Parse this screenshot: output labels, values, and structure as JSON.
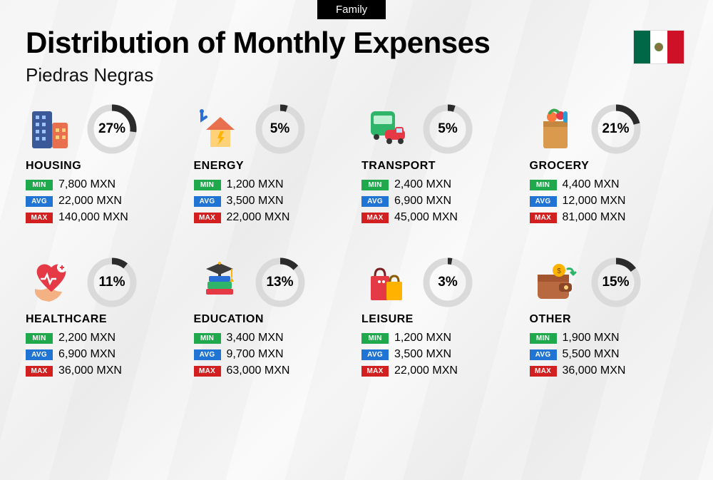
{
  "tab": "Family",
  "title": "Distribution of Monthly Expenses",
  "subtitle": "Piedras Negras",
  "currency": "MXN",
  "labels": {
    "min": "MIN",
    "avg": "AVG",
    "max": "MAX"
  },
  "badge_colors": {
    "min": "#1fa84c",
    "avg": "#1f74d4",
    "max": "#d21f1f"
  },
  "donut": {
    "ring_color": "#2b2b2b",
    "track_color": "#dadada",
    "stroke_width": 9,
    "radius": 30
  },
  "flag": {
    "green": "#006847",
    "white": "#ffffff",
    "red": "#ce1126"
  },
  "categories": [
    {
      "name": "HOUSING",
      "pct": 27,
      "min": "7,800",
      "avg": "22,000",
      "max": "140,000",
      "icon": "buildings"
    },
    {
      "name": "ENERGY",
      "pct": 5,
      "min": "1,200",
      "avg": "3,500",
      "max": "22,000",
      "icon": "energy-house"
    },
    {
      "name": "TRANSPORT",
      "pct": 5,
      "min": "2,400",
      "avg": "6,900",
      "max": "45,000",
      "icon": "transport"
    },
    {
      "name": "GROCERY",
      "pct": 21,
      "min": "4,400",
      "avg": "12,000",
      "max": "81,000",
      "icon": "grocery-bag"
    },
    {
      "name": "HEALTHCARE",
      "pct": 11,
      "min": "2,200",
      "avg": "6,900",
      "max": "36,000",
      "icon": "healthcare"
    },
    {
      "name": "EDUCATION",
      "pct": 13,
      "min": "3,400",
      "avg": "9,700",
      "max": "63,000",
      "icon": "education"
    },
    {
      "name": "LEISURE",
      "pct": 3,
      "min": "1,200",
      "avg": "3,500",
      "max": "22,000",
      "icon": "shopping-bags"
    },
    {
      "name": "OTHER",
      "pct": 15,
      "min": "1,900",
      "avg": "5,500",
      "max": "36,000",
      "icon": "wallet"
    }
  ]
}
